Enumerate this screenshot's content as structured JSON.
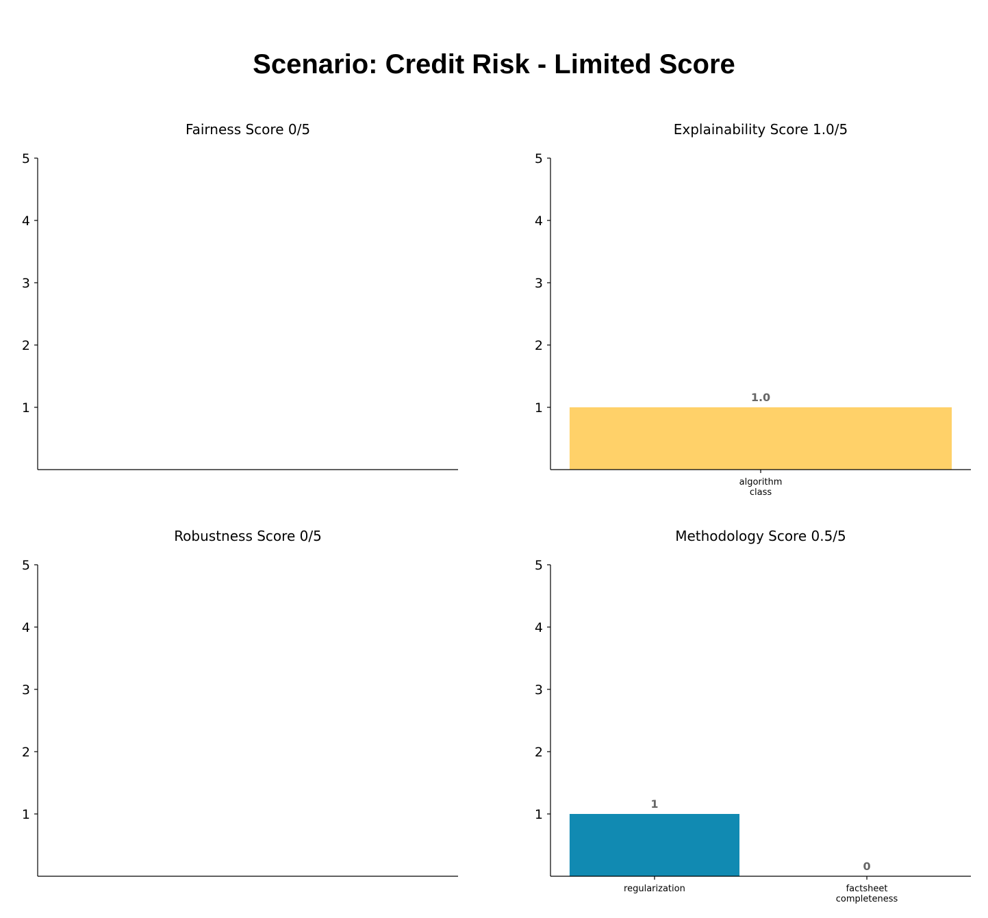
{
  "title": "Scenario: Credit Risk - Limited Score",
  "chart_data": [
    {
      "type": "bar",
      "title": "Fairness Score 0/5",
      "categories": [],
      "values": [],
      "data_labels": [],
      "ylim": [
        0,
        5
      ],
      "yticks": [
        "1",
        "2",
        "3",
        "4",
        "5"
      ],
      "colors": [],
      "grid": false
    },
    {
      "type": "bar",
      "title": "Explainability Score 1.0/5",
      "categories": [
        [
          "algorithm",
          "class"
        ]
      ],
      "values": [
        1.0
      ],
      "data_labels": [
        "1.0"
      ],
      "ylim": [
        0,
        5
      ],
      "yticks": [
        "1",
        "2",
        "3",
        "4",
        "5"
      ],
      "colors": [
        "#ffd169"
      ],
      "grid": false
    },
    {
      "type": "bar",
      "title": "Robustness Score 0/5",
      "categories": [],
      "values": [],
      "data_labels": [],
      "ylim": [
        0,
        5
      ],
      "yticks": [
        "1",
        "2",
        "3",
        "4",
        "5"
      ],
      "colors": [],
      "grid": false
    },
    {
      "type": "bar",
      "title": "Methodology Score 0.5/5",
      "categories": [
        [
          "regularization"
        ],
        [
          "factsheet",
          "completeness"
        ]
      ],
      "values": [
        1,
        0
      ],
      "data_labels": [
        "1",
        "0"
      ],
      "ylim": [
        0,
        5
      ],
      "yticks": [
        "1",
        "2",
        "3",
        "4",
        "5"
      ],
      "colors": [
        "#118ab2",
        "#118ab2"
      ],
      "grid": false
    }
  ]
}
